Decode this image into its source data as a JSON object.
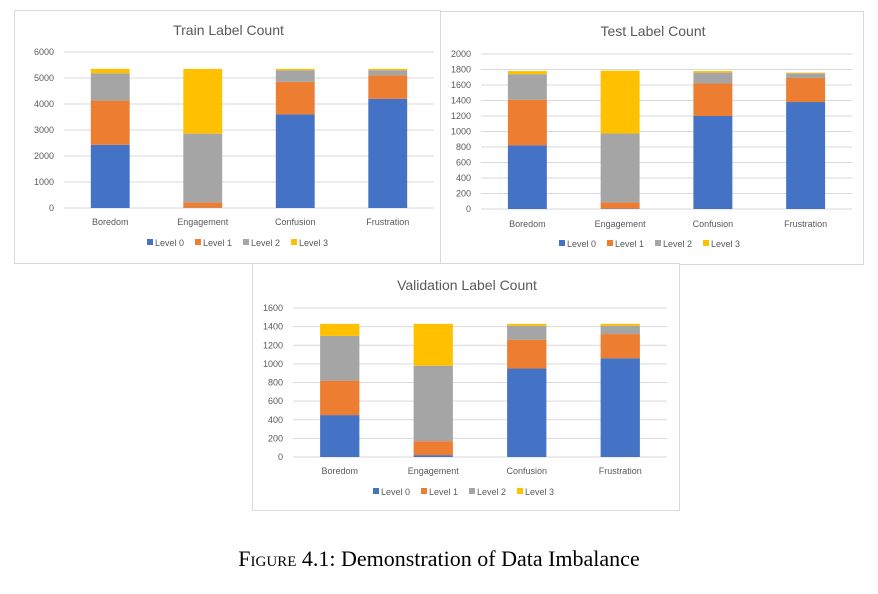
{
  "caption": {
    "label": "Figure 4.1:",
    "text": "Demonstration of Data Imbalance"
  },
  "series_colors": [
    "#4472c4",
    "#ed7d31",
    "#a5a5a5",
    "#ffc000"
  ],
  "chart_data": [
    {
      "type": "bar",
      "stacked": true,
      "title": "Train Label Count",
      "categories": [
        "Boredom",
        "Engagement",
        "Confusion",
        "Frustration"
      ],
      "ylim": [
        0,
        6000
      ],
      "yticks": [
        0,
        1000,
        2000,
        3000,
        4000,
        5000,
        6000
      ],
      "grid": true,
      "legend_position": "bottom",
      "series": [
        {
          "name": "Level 0",
          "values": [
            2430,
            10,
            3600,
            4200
          ]
        },
        {
          "name": "Level 1",
          "values": [
            1700,
            210,
            1250,
            900
          ]
        },
        {
          "name": "Level 2",
          "values": [
            1050,
            2640,
            450,
            200
          ]
        },
        {
          "name": "Level 3",
          "values": [
            170,
            2490,
            50,
            50
          ]
        }
      ]
    },
    {
      "type": "bar",
      "stacked": true,
      "title": "Test Label Count",
      "categories": [
        "Boredom",
        "Engagement",
        "Confusion",
        "Frustration"
      ],
      "ylim": [
        0,
        2000
      ],
      "yticks": [
        0,
        200,
        400,
        600,
        800,
        1000,
        1200,
        1400,
        1600,
        1800,
        2000
      ],
      "grid": true,
      "legend_position": "bottom",
      "series": [
        {
          "name": "Level 0",
          "values": [
            820,
            5,
            1200,
            1380
          ]
        },
        {
          "name": "Level 1",
          "values": [
            590,
            80,
            420,
            310
          ]
        },
        {
          "name": "Level 2",
          "values": [
            330,
            890,
            140,
            60
          ]
        },
        {
          "name": "Level 3",
          "values": [
            40,
            810,
            20,
            10
          ]
        }
      ]
    },
    {
      "type": "bar",
      "stacked": true,
      "title": "Validation Label Count",
      "categories": [
        "Boredom",
        "Engagement",
        "Confusion",
        "Frustration"
      ],
      "ylim": [
        0,
        1600
      ],
      "yticks": [
        0,
        200,
        400,
        600,
        800,
        1000,
        1200,
        1400,
        1600
      ],
      "grid": true,
      "legend_position": "bottom",
      "series": [
        {
          "name": "Level 0",
          "values": [
            450,
            20,
            950,
            1060
          ]
        },
        {
          "name": "Level 1",
          "values": [
            370,
            150,
            310,
            260
          ]
        },
        {
          "name": "Level 2",
          "values": [
            480,
            810,
            150,
            90
          ]
        },
        {
          "name": "Level 3",
          "values": [
            130,
            450,
            20,
            20
          ]
        }
      ]
    }
  ]
}
